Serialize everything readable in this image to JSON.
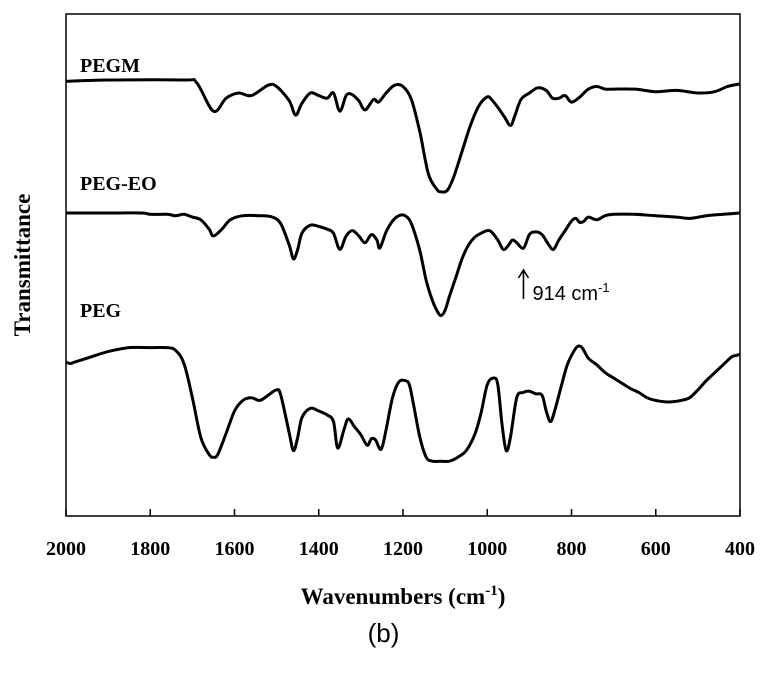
{
  "chart_data": {
    "type": "line",
    "xlabel": "Wavenumbers (cm",
    "xlabel_superscript": "-1",
    "xlabel_suffix": ")",
    "ylabel": "Transmittance",
    "xlim": [
      2000,
      400
    ],
    "x_reversed": true,
    "x_ticks": [
      2000,
      1800,
      1600,
      1400,
      1200,
      1000,
      800,
      600,
      400
    ],
    "y_ticks_shown": false,
    "grid": false,
    "series": [
      {
        "name": "PEGM",
        "offset": 2,
        "points": [
          [
            2000,
            0.99
          ],
          [
            1900,
            1.0
          ],
          [
            1720,
            1.0
          ],
          [
            1690,
            0.98
          ],
          [
            1650,
            0.76
          ],
          [
            1620,
            0.86
          ],
          [
            1590,
            0.9
          ],
          [
            1560,
            0.88
          ],
          [
            1520,
            0.96
          ],
          [
            1500,
            0.95
          ],
          [
            1470,
            0.84
          ],
          [
            1455,
            0.73
          ],
          [
            1440,
            0.82
          ],
          [
            1420,
            0.9
          ],
          [
            1400,
            0.88
          ],
          [
            1380,
            0.86
          ],
          [
            1365,
            0.9
          ],
          [
            1350,
            0.76
          ],
          [
            1335,
            0.88
          ],
          [
            1322,
            0.89
          ],
          [
            1305,
            0.84
          ],
          [
            1290,
            0.77
          ],
          [
            1270,
            0.85
          ],
          [
            1258,
            0.83
          ],
          [
            1240,
            0.9
          ],
          [
            1220,
            0.96
          ],
          [
            1200,
            0.95
          ],
          [
            1180,
            0.85
          ],
          [
            1160,
            0.6
          ],
          [
            1140,
            0.28
          ],
          [
            1120,
            0.16
          ],
          [
            1110,
            0.14
          ],
          [
            1095,
            0.15
          ],
          [
            1080,
            0.25
          ],
          [
            1060,
            0.45
          ],
          [
            1040,
            0.65
          ],
          [
            1020,
            0.8
          ],
          [
            1000,
            0.87
          ],
          [
            990,
            0.85
          ],
          [
            975,
            0.79
          ],
          [
            960,
            0.72
          ],
          [
            945,
            0.65
          ],
          [
            935,
            0.72
          ],
          [
            920,
            0.85
          ],
          [
            900,
            0.9
          ],
          [
            880,
            0.94
          ],
          [
            860,
            0.92
          ],
          [
            845,
            0.86
          ],
          [
            830,
            0.86
          ],
          [
            815,
            0.88
          ],
          [
            800,
            0.83
          ],
          [
            780,
            0.87
          ],
          [
            760,
            0.93
          ],
          [
            740,
            0.95
          ],
          [
            720,
            0.93
          ],
          [
            700,
            0.93
          ],
          [
            650,
            0.93
          ],
          [
            600,
            0.91
          ],
          [
            550,
            0.92
          ],
          [
            500,
            0.9
          ],
          [
            460,
            0.91
          ],
          [
            430,
            0.95
          ],
          [
            400,
            0.97
          ]
        ]
      },
      {
        "name": "PEG-EO",
        "offset": 1,
        "points": [
          [
            2000,
            1.0
          ],
          [
            1900,
            1.0
          ],
          [
            1820,
            1.0
          ],
          [
            1800,
            0.99
          ],
          [
            1760,
            0.99
          ],
          [
            1740,
            0.98
          ],
          [
            1720,
            0.99
          ],
          [
            1700,
            0.97
          ],
          [
            1680,
            0.95
          ],
          [
            1660,
            0.88
          ],
          [
            1650,
            0.83
          ],
          [
            1630,
            0.88
          ],
          [
            1610,
            0.95
          ],
          [
            1580,
            0.98
          ],
          [
            1540,
            0.98
          ],
          [
            1510,
            0.97
          ],
          [
            1490,
            0.92
          ],
          [
            1470,
            0.76
          ],
          [
            1460,
            0.66
          ],
          [
            1450,
            0.73
          ],
          [
            1440,
            0.85
          ],
          [
            1420,
            0.91
          ],
          [
            1400,
            0.9
          ],
          [
            1380,
            0.88
          ],
          [
            1365,
            0.85
          ],
          [
            1350,
            0.73
          ],
          [
            1335,
            0.83
          ],
          [
            1320,
            0.87
          ],
          [
            1305,
            0.83
          ],
          [
            1290,
            0.78
          ],
          [
            1275,
            0.84
          ],
          [
            1262,
            0.8
          ],
          [
            1255,
            0.74
          ],
          [
            1240,
            0.86
          ],
          [
            1225,
            0.94
          ],
          [
            1210,
            0.98
          ],
          [
            1195,
            0.98
          ],
          [
            1180,
            0.92
          ],
          [
            1160,
            0.72
          ],
          [
            1145,
            0.5
          ],
          [
            1130,
            0.35
          ],
          [
            1120,
            0.28
          ],
          [
            1110,
            0.24
          ],
          [
            1100,
            0.28
          ],
          [
            1090,
            0.38
          ],
          [
            1075,
            0.52
          ],
          [
            1060,
            0.66
          ],
          [
            1045,
            0.76
          ],
          [
            1030,
            0.82
          ],
          [
            1015,
            0.85
          ],
          [
            1000,
            0.87
          ],
          [
            990,
            0.86
          ],
          [
            975,
            0.8
          ],
          [
            962,
            0.73
          ],
          [
            950,
            0.76
          ],
          [
            940,
            0.8
          ],
          [
            930,
            0.78
          ],
          [
            914,
            0.74
          ],
          [
            900,
            0.84
          ],
          [
            885,
            0.86
          ],
          [
            870,
            0.84
          ],
          [
            855,
            0.77
          ],
          [
            843,
            0.73
          ],
          [
            830,
            0.8
          ],
          [
            815,
            0.87
          ],
          [
            800,
            0.94
          ],
          [
            790,
            0.96
          ],
          [
            780,
            0.93
          ],
          [
            770,
            0.94
          ],
          [
            760,
            0.97
          ],
          [
            740,
            0.95
          ],
          [
            720,
            0.98
          ],
          [
            700,
            0.99
          ],
          [
            650,
            0.99
          ],
          [
            600,
            0.98
          ],
          [
            550,
            0.97
          ],
          [
            520,
            0.96
          ],
          [
            480,
            0.98
          ],
          [
            440,
            0.99
          ],
          [
            400,
            1.0
          ]
        ]
      },
      {
        "name": "PEG",
        "offset": 0,
        "points": [
          [
            2000,
            0.87
          ],
          [
            1990,
            0.86
          ],
          [
            1980,
            0.87
          ],
          [
            1950,
            0.9
          ],
          [
            1900,
            0.95
          ],
          [
            1850,
            0.98
          ],
          [
            1800,
            0.98
          ],
          [
            1760,
            0.98
          ],
          [
            1740,
            0.96
          ],
          [
            1720,
            0.86
          ],
          [
            1700,
            0.6
          ],
          [
            1680,
            0.3
          ],
          [
            1660,
            0.17
          ],
          [
            1650,
            0.15
          ],
          [
            1640,
            0.17
          ],
          [
            1620,
            0.33
          ],
          [
            1600,
            0.5
          ],
          [
            1580,
            0.58
          ],
          [
            1560,
            0.6
          ],
          [
            1540,
            0.58
          ],
          [
            1520,
            0.62
          ],
          [
            1500,
            0.66
          ],
          [
            1490,
            0.62
          ],
          [
            1470,
            0.33
          ],
          [
            1460,
            0.2
          ],
          [
            1450,
            0.3
          ],
          [
            1440,
            0.45
          ],
          [
            1420,
            0.52
          ],
          [
            1400,
            0.5
          ],
          [
            1380,
            0.47
          ],
          [
            1365,
            0.42
          ],
          [
            1355,
            0.22
          ],
          [
            1340,
            0.36
          ],
          [
            1330,
            0.44
          ],
          [
            1315,
            0.38
          ],
          [
            1300,
            0.32
          ],
          [
            1285,
            0.24
          ],
          [
            1275,
            0.29
          ],
          [
            1265,
            0.28
          ],
          [
            1252,
            0.21
          ],
          [
            1240,
            0.36
          ],
          [
            1225,
            0.6
          ],
          [
            1210,
            0.72
          ],
          [
            1195,
            0.73
          ],
          [
            1185,
            0.7
          ],
          [
            1175,
            0.55
          ],
          [
            1160,
            0.3
          ],
          [
            1145,
            0.15
          ],
          [
            1130,
            0.12
          ],
          [
            1110,
            0.12
          ],
          [
            1090,
            0.12
          ],
          [
            1070,
            0.15
          ],
          [
            1050,
            0.2
          ],
          [
            1030,
            0.32
          ],
          [
            1015,
            0.48
          ],
          [
            1000,
            0.7
          ],
          [
            985,
            0.75
          ],
          [
            975,
            0.7
          ],
          [
            965,
            0.4
          ],
          [
            955,
            0.2
          ],
          [
            945,
            0.3
          ],
          [
            930,
            0.6
          ],
          [
            915,
            0.64
          ],
          [
            900,
            0.65
          ],
          [
            885,
            0.63
          ],
          [
            870,
            0.62
          ],
          [
            860,
            0.5
          ],
          [
            850,
            0.42
          ],
          [
            840,
            0.5
          ],
          [
            825,
            0.68
          ],
          [
            810,
            0.85
          ],
          [
            795,
            0.95
          ],
          [
            785,
            0.99
          ],
          [
            775,
            0.98
          ],
          [
            760,
            0.9
          ],
          [
            740,
            0.85
          ],
          [
            720,
            0.79
          ],
          [
            700,
            0.75
          ],
          [
            680,
            0.71
          ],
          [
            660,
            0.67
          ],
          [
            640,
            0.64
          ],
          [
            620,
            0.6
          ],
          [
            600,
            0.58
          ],
          [
            580,
            0.57
          ],
          [
            560,
            0.57
          ],
          [
            540,
            0.58
          ],
          [
            520,
            0.6
          ],
          [
            500,
            0.66
          ],
          [
            480,
            0.73
          ],
          [
            460,
            0.79
          ],
          [
            440,
            0.85
          ],
          [
            420,
            0.91
          ],
          [
            410,
            0.92
          ],
          [
            400,
            0.93
          ]
        ]
      }
    ],
    "annotation": {
      "x": 914,
      "series": "PEG-EO",
      "text": "914 cm",
      "superscript": "-1"
    }
  },
  "panel_label": "(b)"
}
